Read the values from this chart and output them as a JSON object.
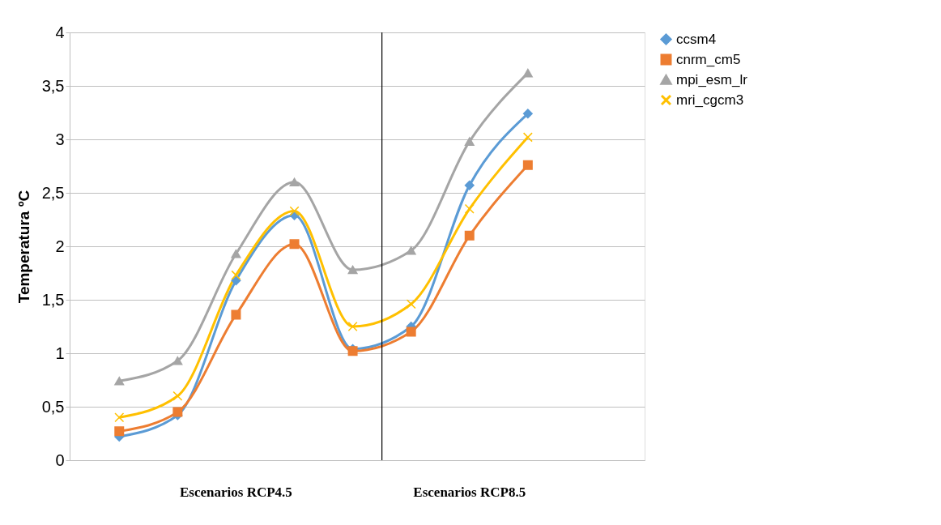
{
  "chart_data": {
    "type": "line",
    "ylabel": "Temperatura ºC",
    "categories": [
      null,
      null,
      null,
      null,
      null,
      null,
      null,
      null
    ],
    "ylim": [
      0,
      4
    ],
    "yticks": [
      0,
      {
        "value": 0.5,
        "label": "0,5"
      },
      1,
      {
        "value": 1.5,
        "label": "1,5"
      },
      2,
      {
        "value": 2.5,
        "label": "2,5"
      },
      3,
      {
        "value": 3.5,
        "label": "3,5"
      },
      4
    ],
    "grid": "y",
    "legend": "right",
    "line_style": "solid",
    "annotations": [
      "Escenarios RCP4.5",
      "Escenarios RCP8.5"
    ],
    "series": [
      {
        "name": "ccsm4",
        "color": "#5b9bd5",
        "marker": "diamond",
        "values": [
          0.22,
          0.42,
          1.68,
          2.29,
          1.04,
          1.25,
          2.57,
          3.24
        ]
      },
      {
        "name": "cnrm_cm5",
        "color": "#ed7d31",
        "marker": "square",
        "values": [
          0.27,
          0.45,
          1.36,
          2.02,
          1.02,
          1.2,
          2.1,
          2.76
        ]
      },
      {
        "name": "mpi_esm_lr",
        "color": "#a5a5a5",
        "marker": "triangle",
        "values": [
          0.74,
          0.93,
          1.93,
          2.6,
          1.78,
          1.96,
          2.98,
          3.62
        ]
      },
      {
        "name": "mri_cgcm3",
        "color": "#ffc000",
        "marker": "cross",
        "values": [
          0.4,
          0.6,
          1.73,
          2.33,
          1.25,
          1.46,
          2.35,
          3.02
        ]
      }
    ]
  }
}
